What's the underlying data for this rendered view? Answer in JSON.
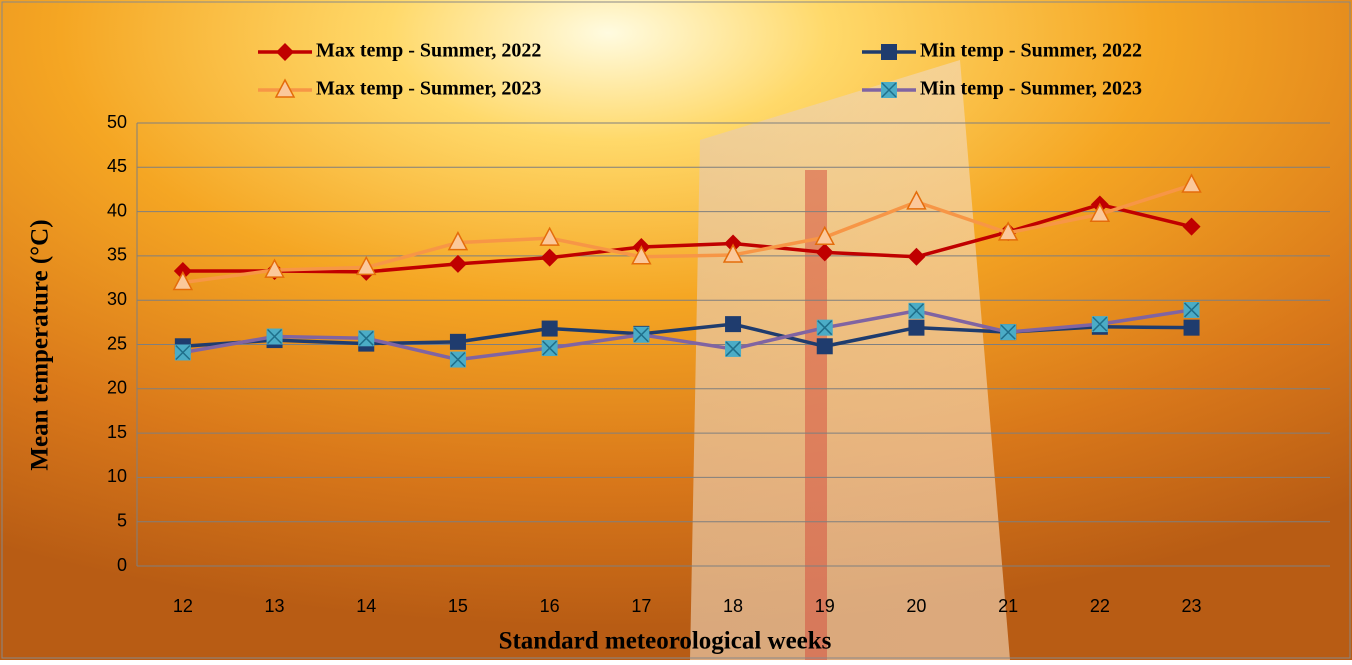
{
  "chart_data": {
    "type": "line",
    "x_label": "Standard meteorological weeks",
    "y_label": "Mean temperature (°C)",
    "categories": [
      "12",
      "13",
      "14",
      "15",
      "16",
      "17",
      "18",
      "19",
      "20",
      "21",
      "22",
      "23"
    ],
    "series": [
      {
        "name": "Max temp - Summer, 2022",
        "color": "#c00000",
        "marker": "diamond",
        "marker_color": "#c00000",
        "values": [
          33.3,
          33.3,
          33.2,
          34.1,
          34.8,
          36.0,
          36.4,
          35.4,
          34.9,
          37.7,
          40.8,
          38.3
        ]
      },
      {
        "name": "Min temp - Summer, 2022",
        "color": "#1f3c6e",
        "marker": "square",
        "marker_color": "#1f3c6e",
        "values": [
          24.8,
          25.5,
          25.1,
          25.3,
          26.8,
          26.2,
          27.3,
          24.8,
          26.9,
          26.4,
          27.0,
          26.9
        ]
      },
      {
        "name": "Max temp - Summer, 2023",
        "color": "#f79646",
        "marker": "triangle",
        "marker_color": "#e46c0a",
        "values": [
          32.0,
          33.4,
          33.7,
          36.5,
          37.0,
          34.9,
          35.1,
          37.1,
          41.1,
          37.6,
          39.7,
          43.0
        ]
      },
      {
        "name": "Min temp - Summer, 2023",
        "color": "#8064a2",
        "marker": "xsquare",
        "marker_color": "#4bacc6",
        "values": [
          24.1,
          25.9,
          25.7,
          23.3,
          24.6,
          26.1,
          24.5,
          26.9,
          28.8,
          26.4,
          27.3,
          28.9
        ]
      }
    ],
    "ylim": [
      0,
      50
    ],
    "yticks": [
      0,
      5,
      10,
      15,
      20,
      25,
      30,
      35,
      40,
      45,
      50
    ],
    "grid": true,
    "legend": "top"
  }
}
